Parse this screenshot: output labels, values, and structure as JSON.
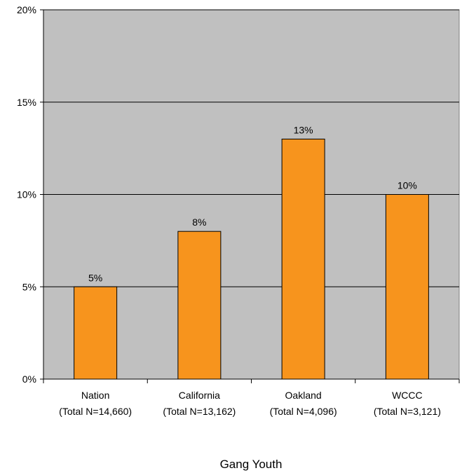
{
  "chart_data": {
    "type": "bar",
    "title": "",
    "xlabel": "Gang Youth",
    "ylabel": "",
    "ylim": [
      0,
      20
    ],
    "yticks": [
      0,
      5,
      10,
      15,
      20
    ],
    "ytick_labels": [
      "0%",
      "5%",
      "10%",
      "15%",
      "20%"
    ],
    "grid": true,
    "categories": [
      {
        "name": "Nation",
        "total": "(Total N=14,660)"
      },
      {
        "name": "California",
        "total": "(Total N=13,162)"
      },
      {
        "name": "Oakland",
        "total": "(Total N=4,096)"
      },
      {
        "name": "WCCC",
        "total": "(Total N=3,121)"
      }
    ],
    "values": [
      5,
      8,
      13,
      10
    ],
    "data_labels": [
      "5%",
      "8%",
      "13%",
      "10%"
    ],
    "colors": {
      "bar_fill": "#F7941D",
      "bar_stroke": "#000000",
      "plot_background": "#C0C0C0",
      "gridline": "#000000"
    }
  }
}
